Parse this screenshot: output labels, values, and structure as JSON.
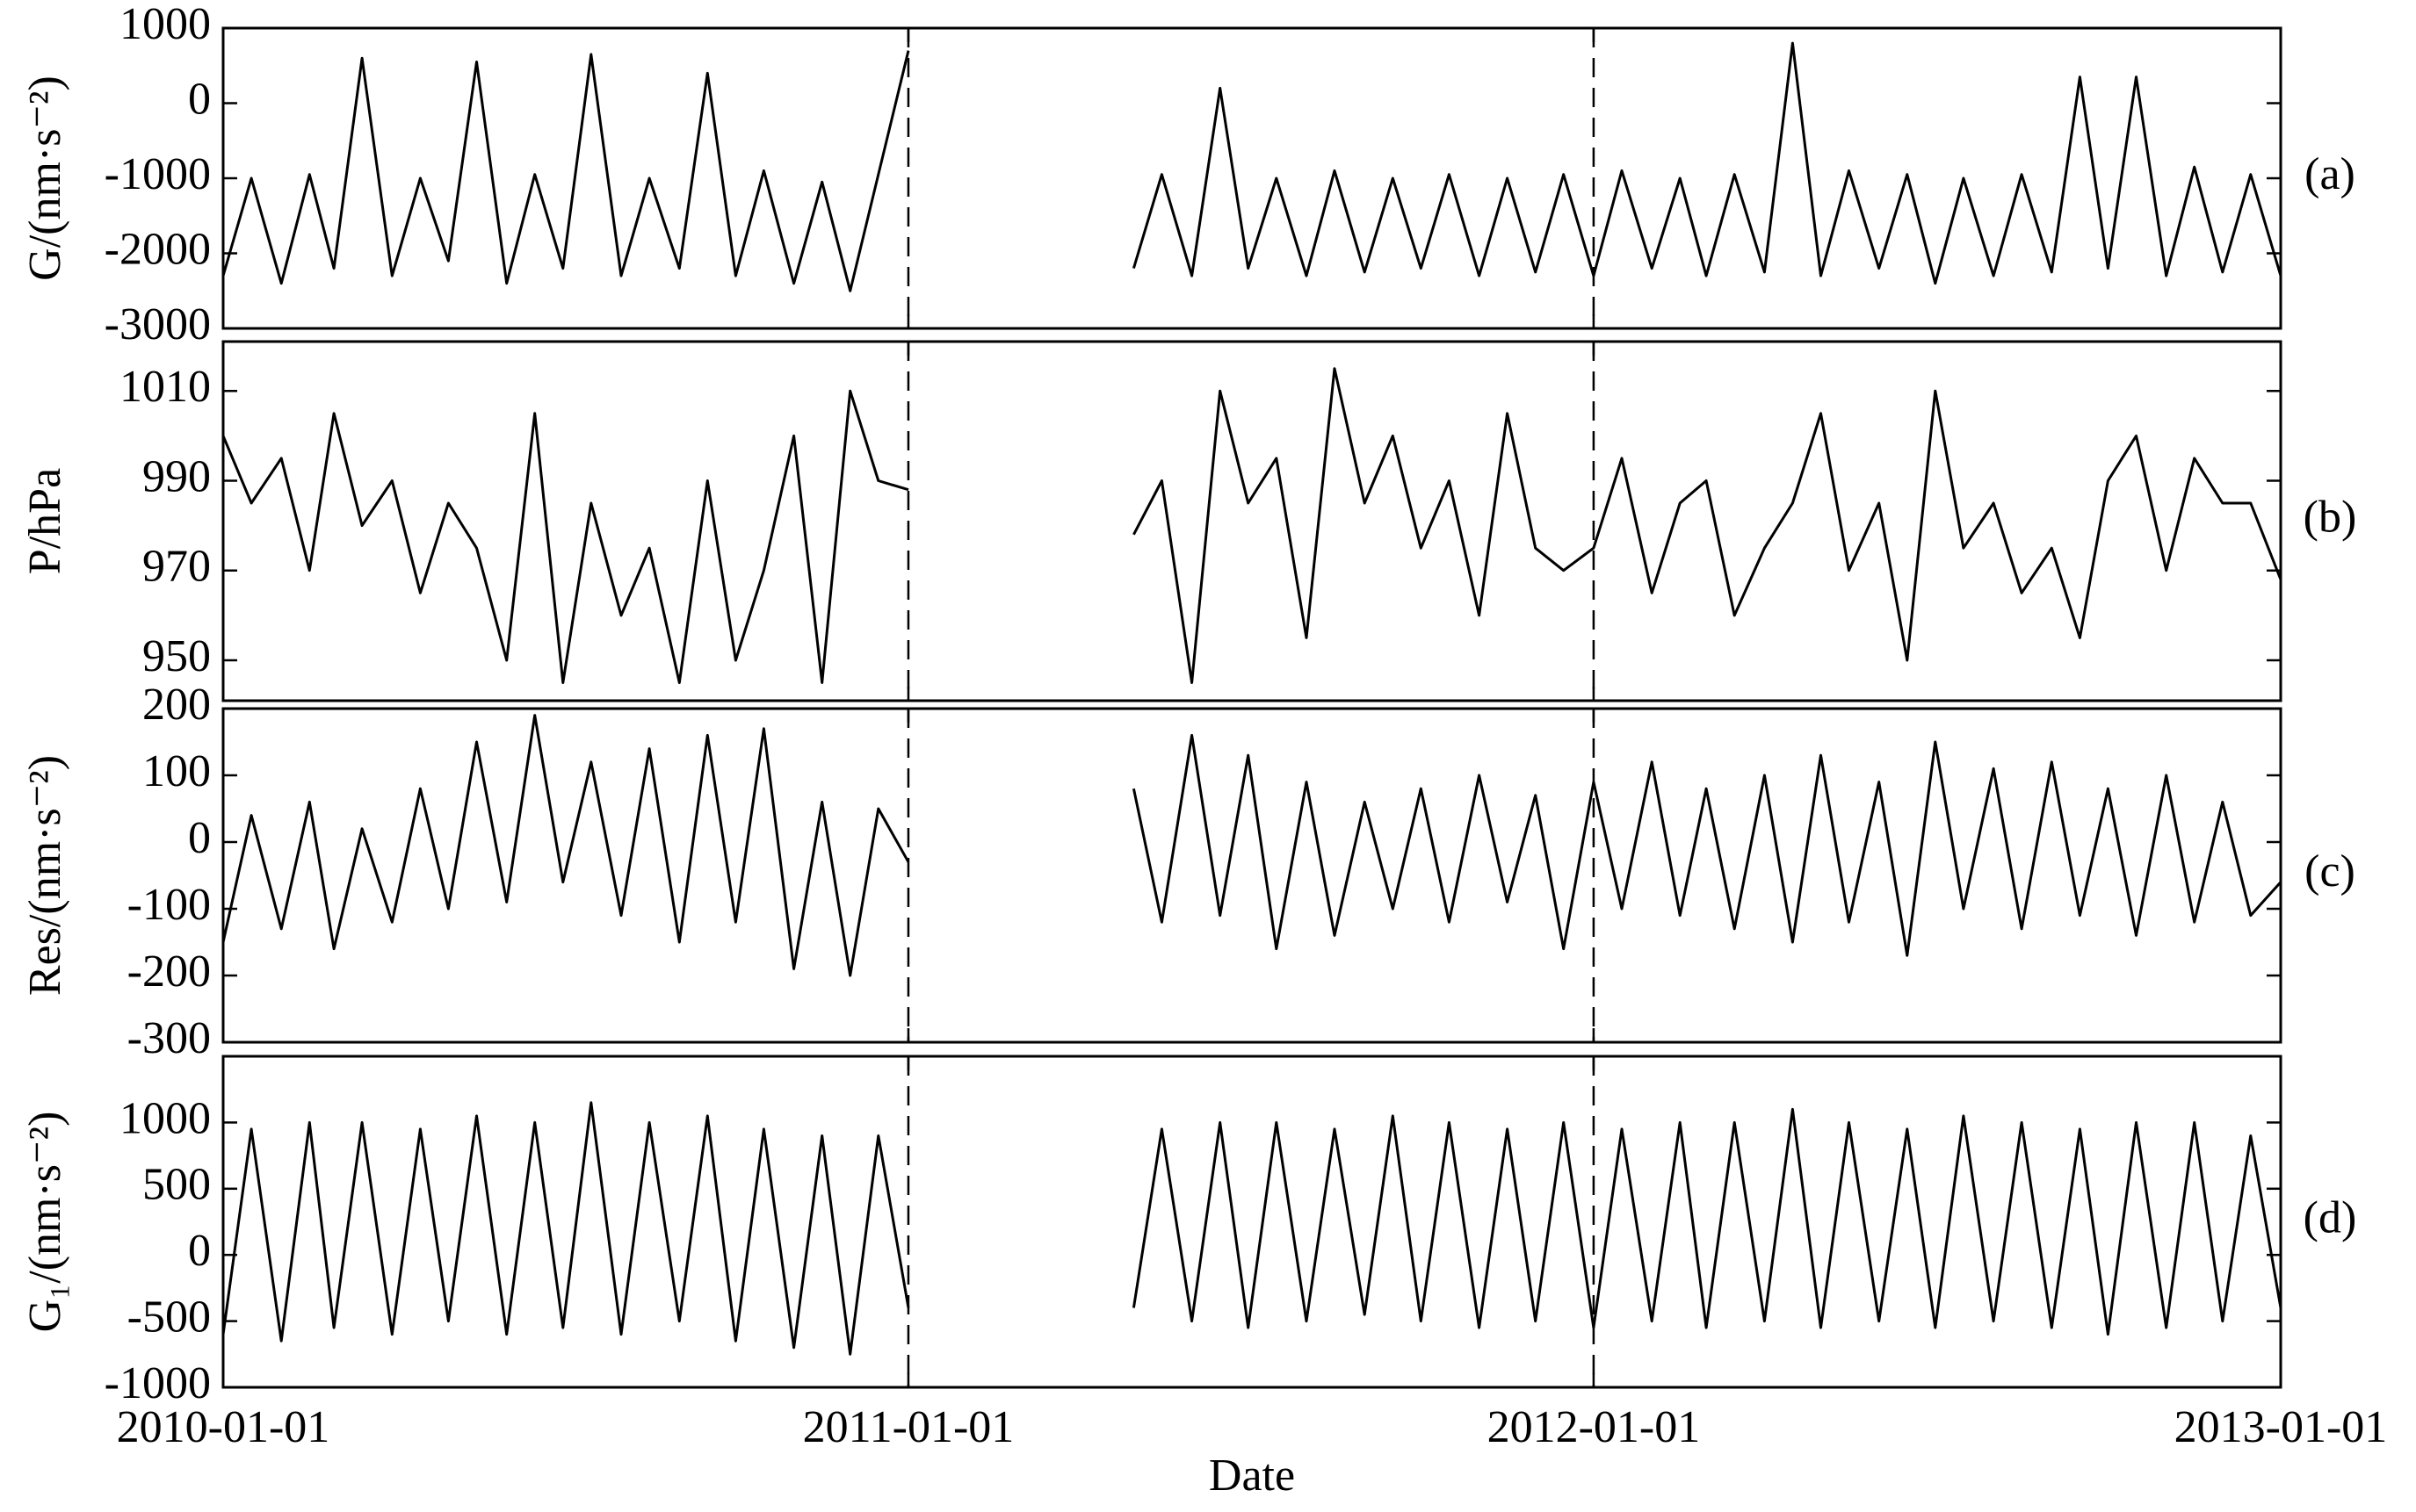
{
  "chart_data": [
    {
      "type": "line",
      "ylabel": "G/(nm·s⁻²)",
      "panel_label": "(a)",
      "color": "#000000",
      "xlim": [
        "2010-01-01",
        "2013-01-01"
      ],
      "xticks": [
        "2010-01-01",
        "2011-01-01",
        "2012-01-01",
        "2013-01-01"
      ],
      "ylim": [
        -3000,
        1000
      ],
      "yticks": [
        -3000,
        -2000,
        -1000,
        0,
        1000
      ],
      "x": [
        "2010-01-01",
        "2010-01-16",
        "2010-02-01",
        "2010-02-16",
        "2010-03-01",
        "2010-03-16",
        "2010-04-01",
        "2010-04-16",
        "2010-05-01",
        "2010-05-16",
        "2010-06-01",
        "2010-06-16",
        "2010-07-01",
        "2010-07-16",
        "2010-08-01",
        "2010-08-16",
        "2010-09-01",
        "2010-09-16",
        "2010-10-01",
        "2010-10-16",
        "2010-11-01",
        "2010-11-16",
        "2010-12-01",
        "2010-12-16",
        "2011-01-01",
        "2011-02-01",
        "2011-05-01",
        "2011-05-16",
        "2011-06-01",
        "2011-06-16",
        "2011-07-01",
        "2011-07-16",
        "2011-08-01",
        "2011-08-16",
        "2011-09-01",
        "2011-09-16",
        "2011-10-01",
        "2011-10-16",
        "2011-11-01",
        "2011-11-16",
        "2011-12-01",
        "2011-12-16",
        "2012-01-01",
        "2012-01-16",
        "2012-02-01",
        "2012-02-16",
        "2012-03-01",
        "2012-03-16",
        "2012-04-01",
        "2012-04-16",
        "2012-05-01",
        "2012-05-16",
        "2012-06-01",
        "2012-06-16",
        "2012-07-01",
        "2012-07-16",
        "2012-08-01",
        "2012-08-16",
        "2012-09-01",
        "2012-09-16",
        "2012-10-01",
        "2012-10-16",
        "2012-11-01",
        "2012-11-16",
        "2012-12-01",
        "2012-12-16",
        "2013-01-01"
      ],
      "values": [
        -2300,
        -1000,
        -2400,
        -950,
        -2200,
        600,
        -2300,
        -1000,
        -2100,
        550,
        -2400,
        -950,
        -2200,
        650,
        -2300,
        -1000,
        -2200,
        400,
        -2300,
        -900,
        -2400,
        -1050,
        -2500,
        -950,
        700,
        null,
        -2200,
        -950,
        -2300,
        200,
        -2200,
        -1000,
        -2300,
        -900,
        -2250,
        -1000,
        -2200,
        -950,
        -2300,
        -1000,
        -2250,
        -950,
        -2300,
        -900,
        -2200,
        -1000,
        -2300,
        -950,
        -2250,
        800,
        -2300,
        -900,
        -2200,
        -950,
        -2400,
        -1000,
        -2300,
        -950,
        -2250,
        350,
        -2200,
        350,
        -2300,
        -850,
        -2250,
        -950,
        -2300
      ]
    },
    {
      "type": "line",
      "ylabel": "P/hPa",
      "panel_label": "(b)",
      "color": "#000000",
      "xlim": [
        "2010-01-01",
        "2013-01-01"
      ],
      "xticks": [
        "2010-01-01",
        "2011-01-01",
        "2012-01-01",
        "2013-01-01"
      ],
      "ylim": [
        941,
        1021
      ],
      "yticks": [
        950,
        970,
        990,
        1010
      ],
      "x": [
        "2010-01-01",
        "2010-01-16",
        "2010-02-01",
        "2010-02-16",
        "2010-03-01",
        "2010-03-16",
        "2010-04-01",
        "2010-04-16",
        "2010-05-01",
        "2010-05-16",
        "2010-06-01",
        "2010-06-16",
        "2010-07-01",
        "2010-07-16",
        "2010-08-01",
        "2010-08-16",
        "2010-09-01",
        "2010-09-16",
        "2010-10-01",
        "2010-10-16",
        "2010-11-01",
        "2010-11-16",
        "2010-12-01",
        "2010-12-16",
        "2011-01-01",
        "2011-02-01",
        "2011-05-01",
        "2011-05-16",
        "2011-06-01",
        "2011-06-16",
        "2011-07-01",
        "2011-07-16",
        "2011-08-01",
        "2011-08-16",
        "2011-09-01",
        "2011-09-16",
        "2011-10-01",
        "2011-10-16",
        "2011-11-01",
        "2011-11-16",
        "2011-12-01",
        "2011-12-16",
        "2012-01-01",
        "2012-01-16",
        "2012-02-01",
        "2012-02-16",
        "2012-03-01",
        "2012-03-16",
        "2012-04-01",
        "2012-04-16",
        "2012-05-01",
        "2012-05-16",
        "2012-06-01",
        "2012-06-16",
        "2012-07-01",
        "2012-07-16",
        "2012-08-01",
        "2012-08-16",
        "2012-09-01",
        "2012-09-16",
        "2012-10-01",
        "2012-10-16",
        "2012-11-01",
        "2012-11-16",
        "2012-12-01",
        "2012-12-16",
        "2013-01-01"
      ],
      "values": [
        1000,
        985,
        995,
        970,
        1005,
        980,
        990,
        965,
        985,
        975,
        950,
        1005,
        945,
        985,
        960,
        975,
        945,
        990,
        950,
        970,
        1000,
        945,
        1010,
        990,
        988,
        null,
        978,
        990,
        945,
        1010,
        985,
        995,
        955,
        1015,
        985,
        1000,
        975,
        990,
        960,
        1005,
        975,
        970,
        975,
        995,
        965,
        985,
        990,
        960,
        975,
        985,
        1005,
        970,
        985,
        950,
        1010,
        975,
        985,
        965,
        975,
        955,
        990,
        1000,
        970,
        995,
        985,
        985,
        968
      ]
    },
    {
      "type": "line",
      "ylabel": "Res/(nm·s⁻²)",
      "panel_label": "(c)",
      "color": "#000000",
      "xlim": [
        "2010-01-01",
        "2013-01-01"
      ],
      "xticks": [
        "2010-01-01",
        "2011-01-01",
        "2012-01-01",
        "2013-01-01"
      ],
      "ylim": [
        -300,
        200
      ],
      "yticks": [
        -300,
        -200,
        -100,
        0,
        100,
        200
      ],
      "x": [
        "2010-01-01",
        "2010-01-16",
        "2010-02-01",
        "2010-02-16",
        "2010-03-01",
        "2010-03-16",
        "2010-04-01",
        "2010-04-16",
        "2010-05-01",
        "2010-05-16",
        "2010-06-01",
        "2010-06-16",
        "2010-07-01",
        "2010-07-16",
        "2010-08-01",
        "2010-08-16",
        "2010-09-01",
        "2010-09-16",
        "2010-10-01",
        "2010-10-16",
        "2010-11-01",
        "2010-11-16",
        "2010-12-01",
        "2010-12-16",
        "2011-01-01",
        "2011-02-01",
        "2011-05-01",
        "2011-05-16",
        "2011-06-01",
        "2011-06-16",
        "2011-07-01",
        "2011-07-16",
        "2011-08-01",
        "2011-08-16",
        "2011-09-01",
        "2011-09-16",
        "2011-10-01",
        "2011-10-16",
        "2011-11-01",
        "2011-11-16",
        "2011-12-01",
        "2011-12-16",
        "2012-01-01",
        "2012-01-16",
        "2012-02-01",
        "2012-02-16",
        "2012-03-01",
        "2012-03-16",
        "2012-04-01",
        "2012-04-16",
        "2012-05-01",
        "2012-05-16",
        "2012-06-01",
        "2012-06-16",
        "2012-07-01",
        "2012-07-16",
        "2012-08-01",
        "2012-08-16",
        "2012-09-01",
        "2012-09-16",
        "2012-10-01",
        "2012-10-16",
        "2012-11-01",
        "2012-11-16",
        "2012-12-01",
        "2012-12-16",
        "2013-01-01"
      ],
      "values": [
        -150,
        40,
        -130,
        60,
        -160,
        20,
        -120,
        80,
        -100,
        150,
        -90,
        190,
        -60,
        120,
        -110,
        140,
        -150,
        160,
        -120,
        170,
        -190,
        60,
        -200,
        50,
        -30,
        null,
        80,
        -120,
        160,
        -110,
        130,
        -160,
        90,
        -140,
        60,
        -100,
        80,
        -120,
        100,
        -90,
        70,
        -160,
        90,
        -100,
        120,
        -110,
        80,
        -130,
        100,
        -150,
        130,
        -120,
        90,
        -170,
        150,
        -100,
        110,
        -130,
        120,
        -110,
        80,
        -140,
        100,
        -120,
        60,
        -110,
        -60
      ]
    },
    {
      "type": "line",
      "ylabel": "G₁/(nm·s⁻²)",
      "panel_label": "(d)",
      "xlabel": "Date",
      "color": "#000000",
      "xlim": [
        "2010-01-01",
        "2013-01-01"
      ],
      "xticks": [
        "2010-01-01",
        "2011-01-01",
        "2012-01-01",
        "2013-01-01"
      ],
      "ylim": [
        -1000,
        1500
      ],
      "yticks": [
        -1000,
        -500,
        0,
        500,
        1000
      ],
      "x": [
        "2010-01-01",
        "2010-01-16",
        "2010-02-01",
        "2010-02-16",
        "2010-03-01",
        "2010-03-16",
        "2010-04-01",
        "2010-04-16",
        "2010-05-01",
        "2010-05-16",
        "2010-06-01",
        "2010-06-16",
        "2010-07-01",
        "2010-07-16",
        "2010-08-01",
        "2010-08-16",
        "2010-09-01",
        "2010-09-16",
        "2010-10-01",
        "2010-10-16",
        "2010-11-01",
        "2010-11-16",
        "2010-12-01",
        "2010-12-16",
        "2011-01-01",
        "2011-02-01",
        "2011-05-01",
        "2011-05-16",
        "2011-06-01",
        "2011-06-16",
        "2011-07-01",
        "2011-07-16",
        "2011-08-01",
        "2011-08-16",
        "2011-09-01",
        "2011-09-16",
        "2011-10-01",
        "2011-10-16",
        "2011-11-01",
        "2011-11-16",
        "2011-12-01",
        "2011-12-16",
        "2012-01-01",
        "2012-01-16",
        "2012-02-01",
        "2012-02-16",
        "2012-03-01",
        "2012-03-16",
        "2012-04-01",
        "2012-04-16",
        "2012-05-01",
        "2012-05-16",
        "2012-06-01",
        "2012-06-16",
        "2012-07-01",
        "2012-07-16",
        "2012-08-01",
        "2012-08-16",
        "2012-09-01",
        "2012-09-16",
        "2012-10-01",
        "2012-10-16",
        "2012-11-01",
        "2012-11-16",
        "2012-12-01",
        "2012-12-16",
        "2013-01-01"
      ],
      "values": [
        -600,
        950,
        -650,
        1000,
        -550,
        1000,
        -600,
        950,
        -500,
        1050,
        -600,
        1000,
        -550,
        1150,
        -600,
        1000,
        -500,
        1050,
        -650,
        950,
        -700,
        900,
        -750,
        900,
        -400,
        null,
        -400,
        950,
        -500,
        1000,
        -550,
        1000,
        -500,
        950,
        -450,
        1050,
        -500,
        1000,
        -550,
        950,
        -500,
        1000,
        -550,
        950,
        -500,
        1000,
        -550,
        1000,
        -500,
        1100,
        -550,
        1000,
        -500,
        950,
        -550,
        1050,
        -500,
        1000,
        -550,
        950,
        -600,
        1000,
        -550,
        1000,
        -500,
        900,
        -400
      ]
    }
  ]
}
